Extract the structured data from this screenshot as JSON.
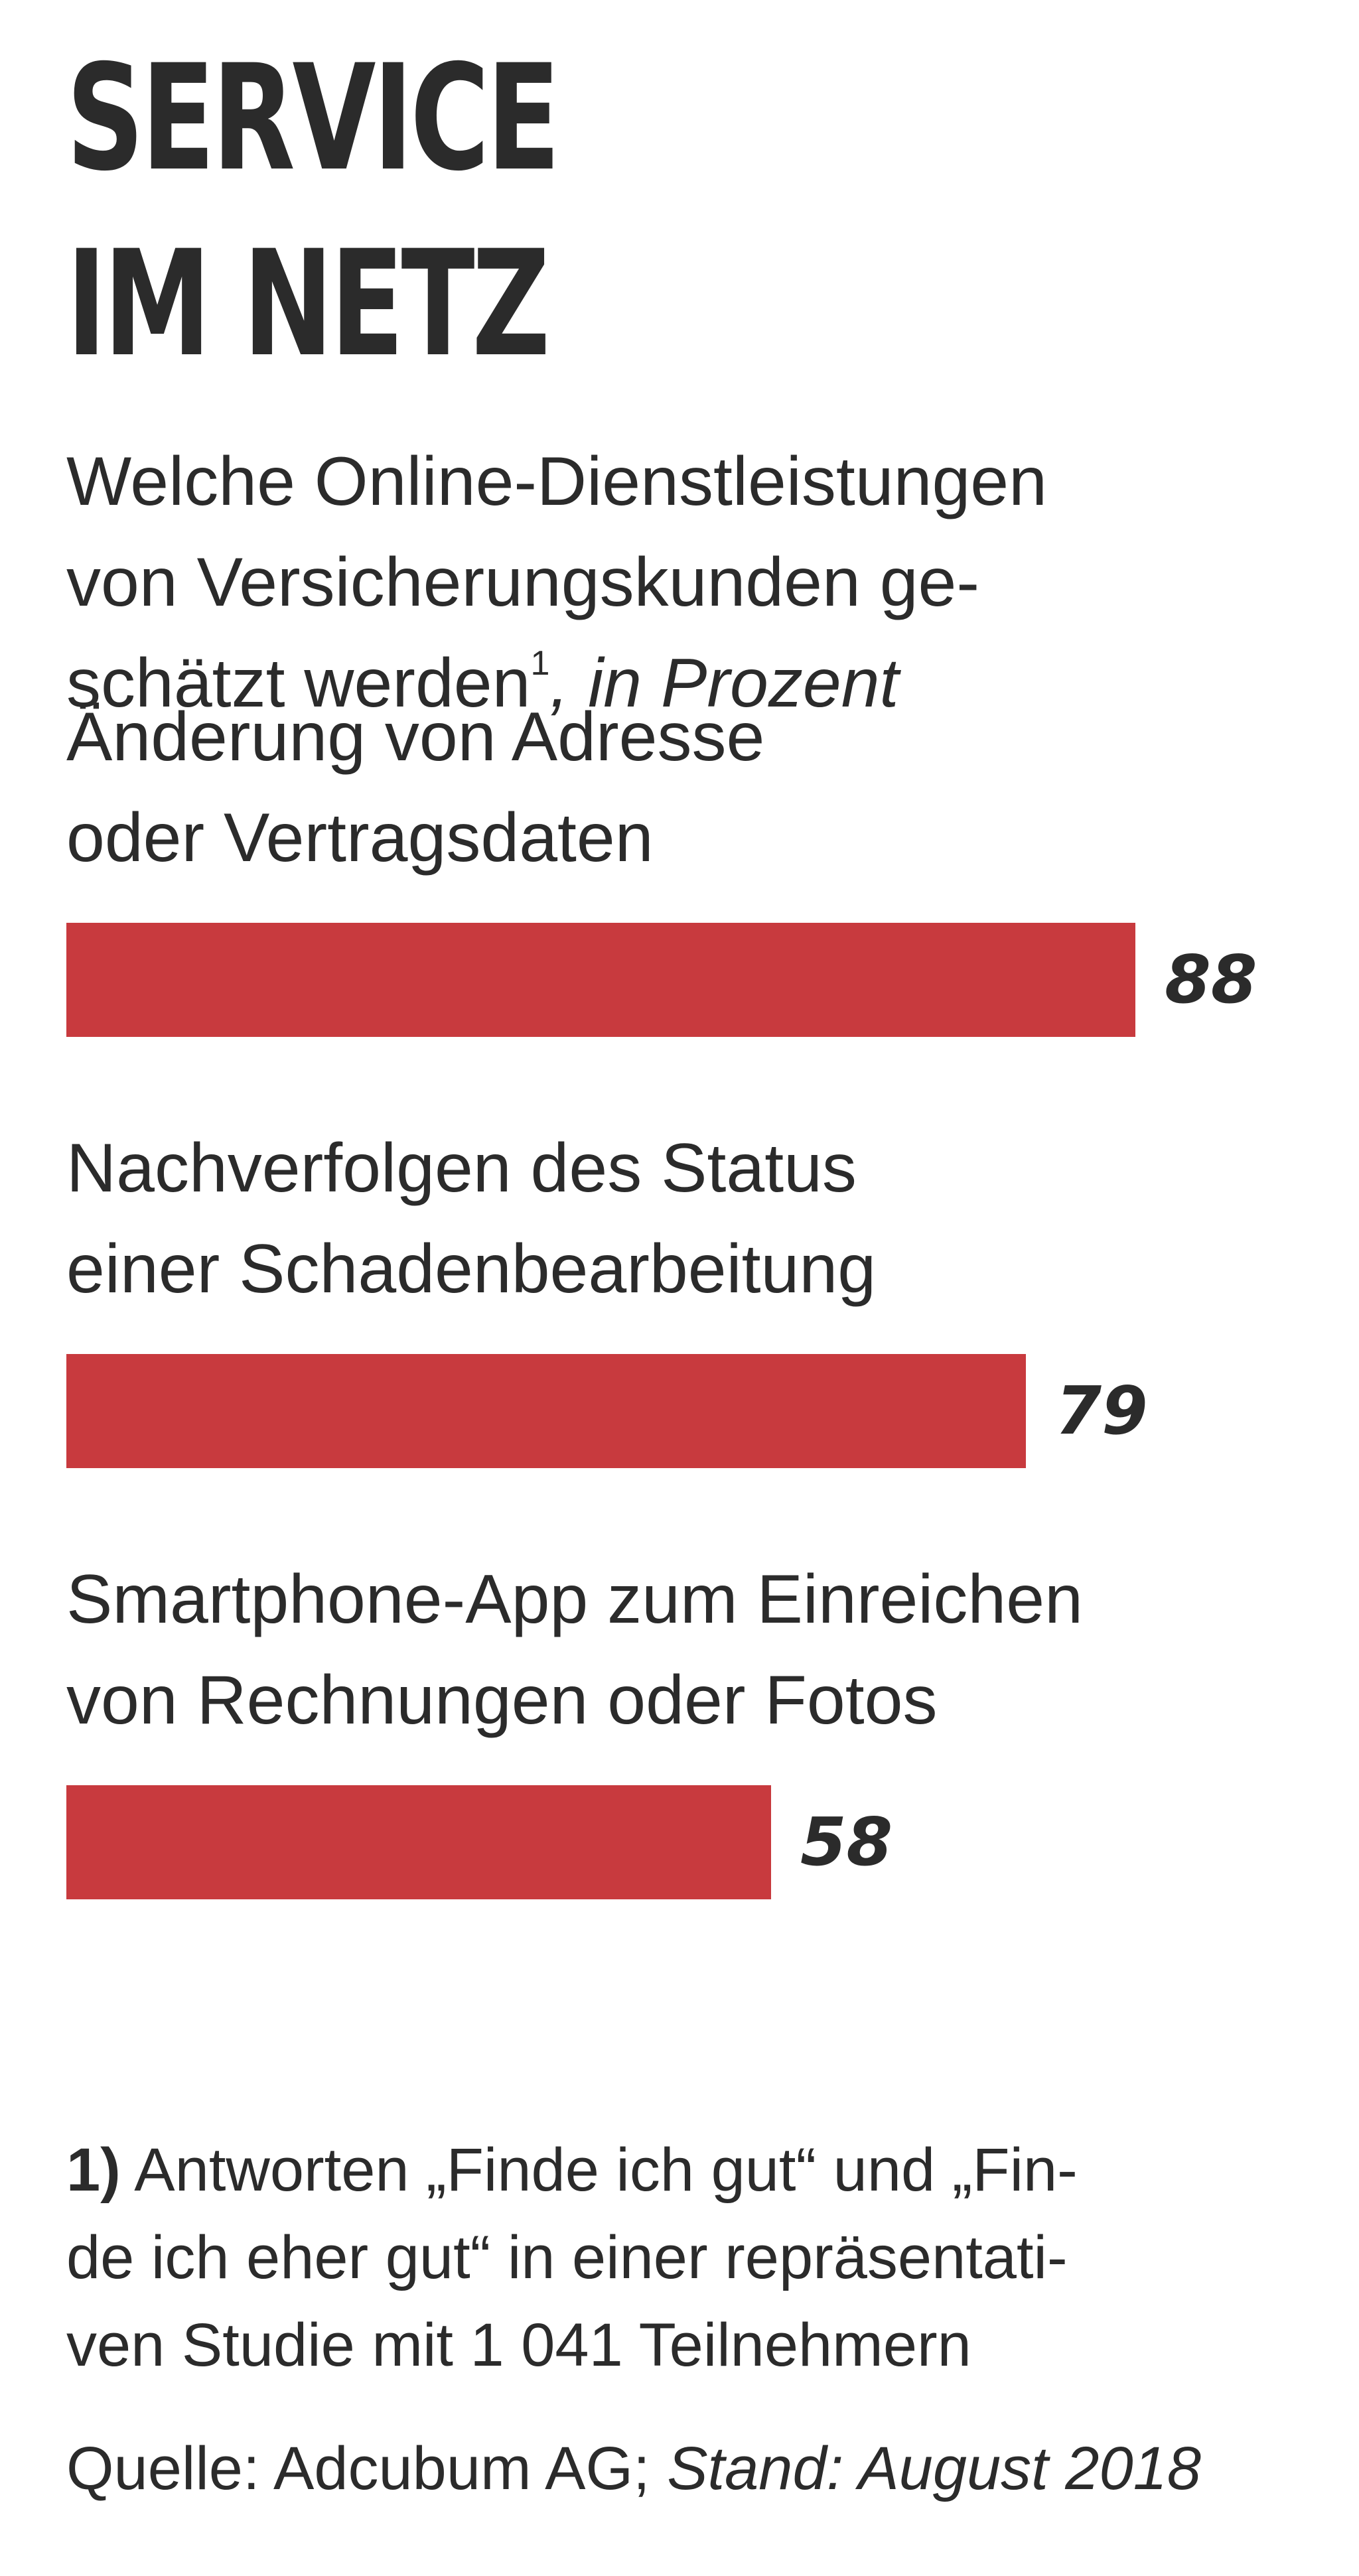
{
  "title_lines": [
    "SERVICE",
    "IM NETZ"
  ],
  "subtitle": {
    "lines": [
      "Welche Online-Dienstleistungen",
      "von Versicherungskunden ge-",
      "schätzt werden"
    ],
    "footnote_ref": "1",
    "unit": ", in Prozent"
  },
  "chart_data": {
    "type": "bar",
    "orientation": "horizontal",
    "title": "SERVICE IM NETZ",
    "unit": "in Prozent",
    "xlim": [
      0,
      100
    ],
    "grid": false,
    "color": "#c83a3e",
    "bars": [
      {
        "label_lines": [
          "Änderung von Adresse",
          "oder Vertragsdaten"
        ],
        "value": 88
      },
      {
        "label_lines": [
          "Nachverfolgen des Status",
          "einer Schadenbearbeitung"
        ],
        "value": 79
      },
      {
        "label_lines": [
          "Smartphone-App zum Einreichen",
          "von Rechnungen oder Fotos"
        ],
        "value": 58
      }
    ]
  },
  "footnote": {
    "marker": "1)",
    "lines": [
      " Antworten „Finde ich gut“ und „Fin-",
      "de ich eher gut“ in einer repräsentati-",
      "ven Studie mit 1 041 Teilnehmern"
    ]
  },
  "source": {
    "prefix": "Quelle: Adcubum AG; ",
    "date": "Stand: August 2018"
  }
}
